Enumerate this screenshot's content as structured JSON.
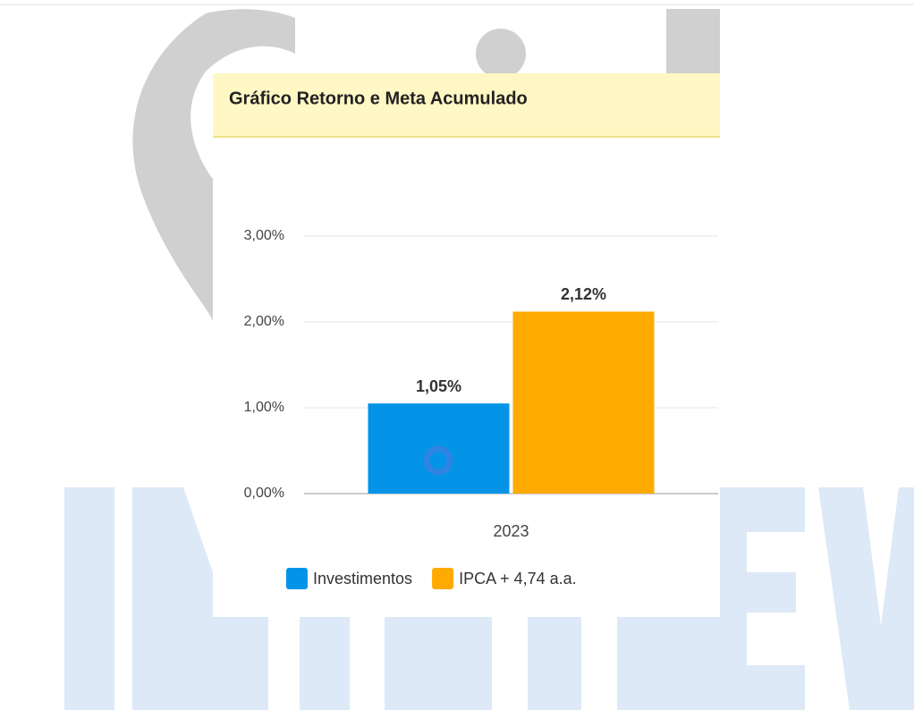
{
  "chart_data": {
    "type": "bar",
    "title": "Gráfico Retorno e Meta Acumulado",
    "categories": [
      "2023"
    ],
    "series": [
      {
        "name": "Investimentos",
        "color": "#0394e8",
        "values": [
          1.05
        ],
        "value_labels": [
          "1,05%"
        ]
      },
      {
        "name": "IPCA + 4,74 a.a.",
        "color": "#ffaa00",
        "values": [
          2.12
        ],
        "value_labels": [
          "2,12%"
        ]
      }
    ],
    "ylim": [
      0,
      3
    ],
    "yticks": [
      {
        "value": 0,
        "label": "0,00%"
      },
      {
        "value": 1,
        "label": "1,00%"
      },
      {
        "value": 2,
        "label": "2,00%"
      },
      {
        "value": 3,
        "label": "3,00%"
      }
    ],
    "grid": true,
    "legend": "bottom"
  }
}
